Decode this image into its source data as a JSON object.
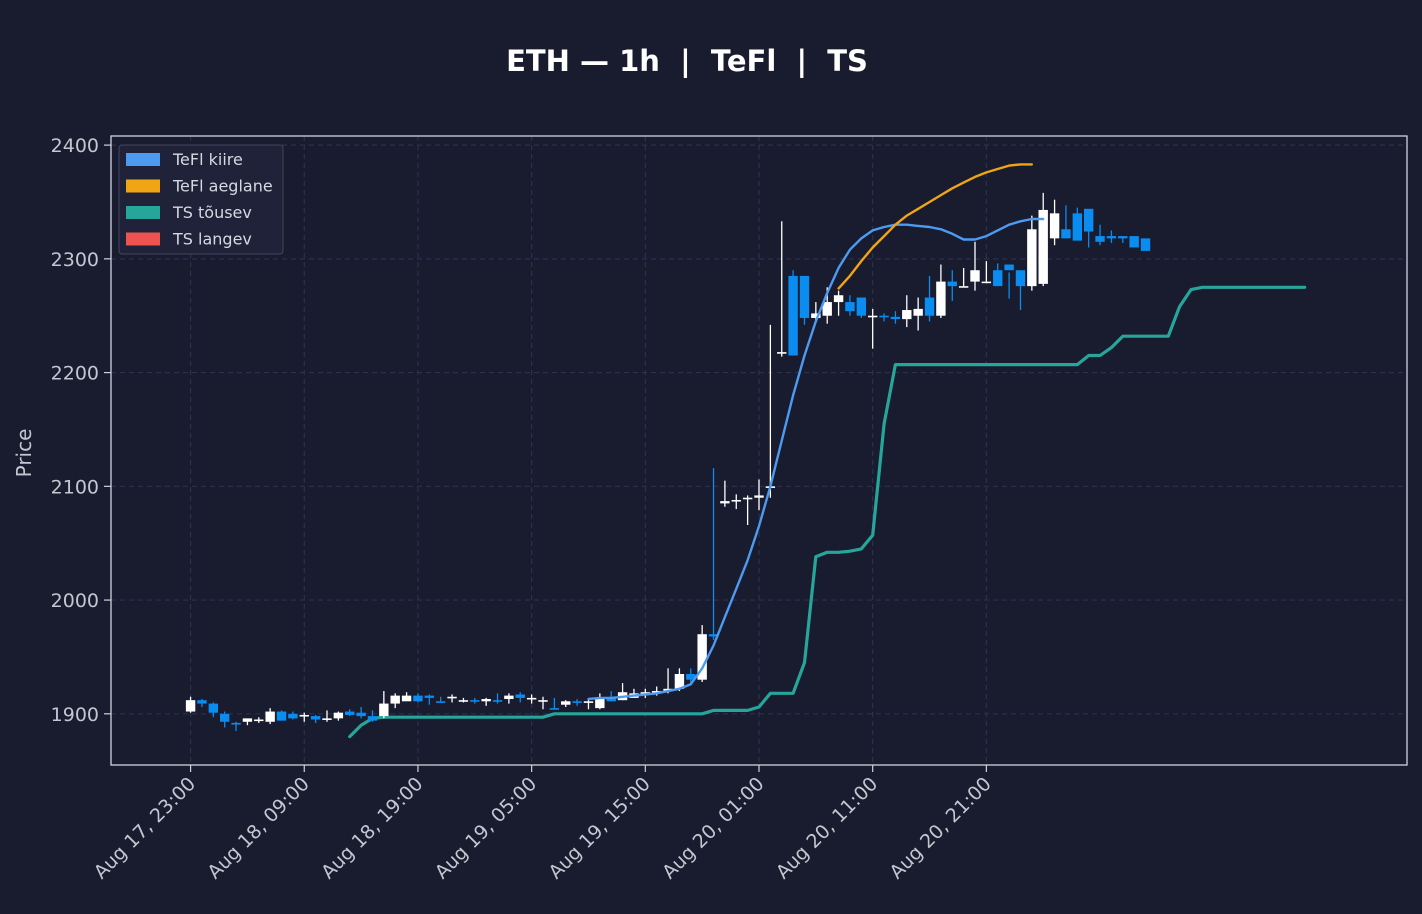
{
  "chart_data": {
    "type": "candlestick",
    "title": "ETH — 1h  |  TeFl  |  TS",
    "xlabel": "",
    "ylabel": "Price",
    "ylim": [
      1855,
      2408
    ],
    "xlim": [
      -7,
      107
    ],
    "yticks": [
      1900,
      2000,
      2100,
      2200,
      2300,
      2400
    ],
    "ytick_labels": [
      "1900",
      "2000",
      "2100",
      "2200",
      "2300",
      "2400"
    ],
    "xticks": [
      0,
      10,
      20,
      30,
      40,
      50,
      60,
      70
    ],
    "xtick_labels": [
      "Aug 17, 23:00",
      "Aug 18, 09:00",
      "Aug 18, 19:00",
      "Aug 19, 05:00",
      "Aug 19, 15:00",
      "Aug 20, 01:00",
      "Aug 20, 11:00",
      "Aug 20, 21:00"
    ],
    "grid": true,
    "legend_position": "top-left",
    "legend": [
      {
        "label": "TeFl kiire",
        "color": "#4c9bf0"
      },
      {
        "label": "TeFl aeglane",
        "color": "#f0a513"
      },
      {
        "label": "TS tõusev",
        "color": "#26a69a"
      },
      {
        "label": "TS langev",
        "color": "#ef5350"
      }
    ],
    "colors": {
      "background": "#191b2e",
      "candle_up": "#ffffff",
      "candle_down": "#0a8cf0",
      "grid": "#2d3150",
      "frame": "#d0d2dc"
    },
    "candles": {
      "open": [
        1902,
        1912,
        1909,
        1900,
        1892,
        1893,
        1894,
        1893,
        1902,
        1900,
        1898,
        1898,
        1895,
        1896,
        1902,
        1901,
        1898,
        1898,
        1909,
        1911,
        1916,
        1916,
        1911,
        1915,
        1912,
        1912,
        1911,
        1912,
        1913,
        1917,
        1914,
        1912,
        1905,
        1908,
        1911,
        1911,
        1905,
        1914,
        1912,
        1914,
        1917,
        1918,
        1920,
        1922,
        1935,
        1930,
        1970,
        2085,
        2088,
        2090,
        2090,
        2100,
        2218,
        2285,
        2285,
        2248,
        2250,
        2262,
        2262,
        2266,
        2250,
        2250,
        2249,
        2247,
        2250,
        2266,
        2250,
        2280,
        2276,
        2280,
        2280,
        2290,
        2295,
        2290,
        2276,
        2278,
        2318,
        2326,
        2340,
        2344,
        2320,
        2320,
        2320,
        2320,
        2318
      ],
      "high": [
        1915,
        1913,
        1910,
        1902,
        1893,
        1895,
        1897,
        1905,
        1903,
        1902,
        1901,
        1899,
        1903,
        1902,
        1904,
        1906,
        1903,
        1920,
        1918,
        1919,
        1918,
        1917,
        1915,
        1917,
        1914,
        1914,
        1914,
        1918,
        1918,
        1919,
        1917,
        1915,
        1914,
        1912,
        1913,
        1913,
        1918,
        1920,
        1927,
        1922,
        1922,
        1924,
        1940,
        1940,
        1940,
        1978,
        2116,
        2105,
        2093,
        2092,
        2106,
        2242,
        2333,
        2290,
        2262,
        2262,
        2275,
        2272,
        2268,
        2255,
        2256,
        2252,
        2254,
        2268,
        2266,
        2285,
        2295,
        2290,
        2292,
        2315,
        2298,
        2296,
        2288,
        2280,
        2338,
        2358,
        2352,
        2347,
        2345,
        2330,
        2330,
        2325,
        2320,
        2318,
        2310
      ],
      "low": [
        1901,
        1906,
        1897,
        1888,
        1885,
        1890,
        1892,
        1891,
        1894,
        1895,
        1893,
        1892,
        1893,
        1894,
        1898,
        1896,
        1893,
        1896,
        1905,
        1912,
        1910,
        1908,
        1910,
        1910,
        1910,
        1909,
        1907,
        1909,
        1909,
        1910,
        1909,
        1904,
        1904,
        1906,
        1907,
        1904,
        1904,
        1912,
        1912,
        1914,
        1914,
        1916,
        1918,
        1920,
        1926,
        1928,
        1965,
        2082,
        2080,
        2066,
        2079,
        2090,
        2214,
        2215,
        2242,
        2245,
        2243,
        2250,
        2250,
        2248,
        2221,
        2245,
        2243,
        2240,
        2237,
        2245,
        2248,
        2263,
        2275,
        2272,
        2280,
        2280,
        2265,
        2255,
        2272,
        2276,
        2312,
        2320,
        2335,
        2310,
        2312,
        2314,
        2314,
        2314,
        2308
      ],
      "close": [
        1912,
        1909,
        1901,
        1893,
        1891,
        1896,
        1895,
        1902,
        1894,
        1896,
        1899,
        1895,
        1896,
        1901,
        1899,
        1898,
        1894,
        1909,
        1916,
        1916,
        1911,
        1914,
        1910,
        1915,
        1912,
        1911,
        1913,
        1911,
        1916,
        1914,
        1914,
        1912,
        1904,
        1911,
        1910,
        1911,
        1914,
        1911,
        1919,
        1918,
        1919,
        1920,
        1922,
        1935,
        1930,
        1970,
        1968,
        2087,
        2088,
        2090,
        2092,
        2100,
        2218,
        2215,
        2248,
        2252,
        2262,
        2268,
        2254,
        2250,
        2250,
        2249,
        2247,
        2255,
        2256,
        2250,
        2280,
        2276,
        2276,
        2290,
        2280,
        2276,
        2290,
        2276,
        2326,
        2343,
        2340,
        2318,
        2316,
        2324,
        2315,
        2318,
        2318,
        2310,
        2307
      ]
    },
    "series": [
      {
        "name": "TeFl kiire",
        "color": "#4c9bf0",
        "start": 35,
        "values": [
          1913,
          1914,
          1914,
          1915,
          1916,
          1917,
          1918,
          1920,
          1922,
          1926,
          1940,
          1960,
          1985,
          2010,
          2035,
          2065,
          2100,
          2140,
          2180,
          2215,
          2245,
          2270,
          2292,
          2308,
          2318,
          2325,
          2328,
          2330,
          2330,
          2329,
          2328,
          2326,
          2322,
          2317,
          2317,
          2320,
          2325,
          2330,
          2333,
          2335,
          2335
        ]
      },
      {
        "name": "TeFl aeglane",
        "color": "#f0a513",
        "start": 57,
        "values": [
          2274,
          2285,
          2298,
          2310,
          2320,
          2330,
          2338,
          2344,
          2350,
          2356,
          2362,
          2367,
          2372,
          2376,
          2379,
          2382,
          2383,
          2383
        ]
      },
      {
        "name": "TS tõusev",
        "color": "#26a69a",
        "start": 14,
        "values": [
          1880,
          1890,
          1896,
          1897,
          1897,
          1897,
          1897,
          1897,
          1897,
          1897,
          1897,
          1897,
          1897,
          1897,
          1897,
          1897,
          1897,
          1897,
          1900,
          1900,
          1900,
          1900,
          1900,
          1900,
          1900,
          1900,
          1900,
          1900,
          1900,
          1900,
          1900,
          1900,
          1903,
          1903,
          1903,
          1903,
          1906,
          1918,
          1918,
          1918,
          1945,
          2038,
          2042,
          2042,
          2043,
          2045,
          2057,
          2155,
          2207,
          2207,
          2207,
          2207,
          2207,
          2207,
          2207,
          2207,
          2207,
          2207,
          2207,
          2207,
          2207,
          2207,
          2207,
          2207,
          2207,
          2215,
          2215,
          2222,
          2232,
          2232,
          2232,
          2232,
          2232,
          2258,
          2273,
          2275,
          2275,
          2275,
          2275,
          2275,
          2275,
          2275,
          2275,
          2275,
          2275
        ]
      },
      {
        "name": "TS langev",
        "color": "#ef5350",
        "start": 0,
        "values": []
      }
    ]
  }
}
